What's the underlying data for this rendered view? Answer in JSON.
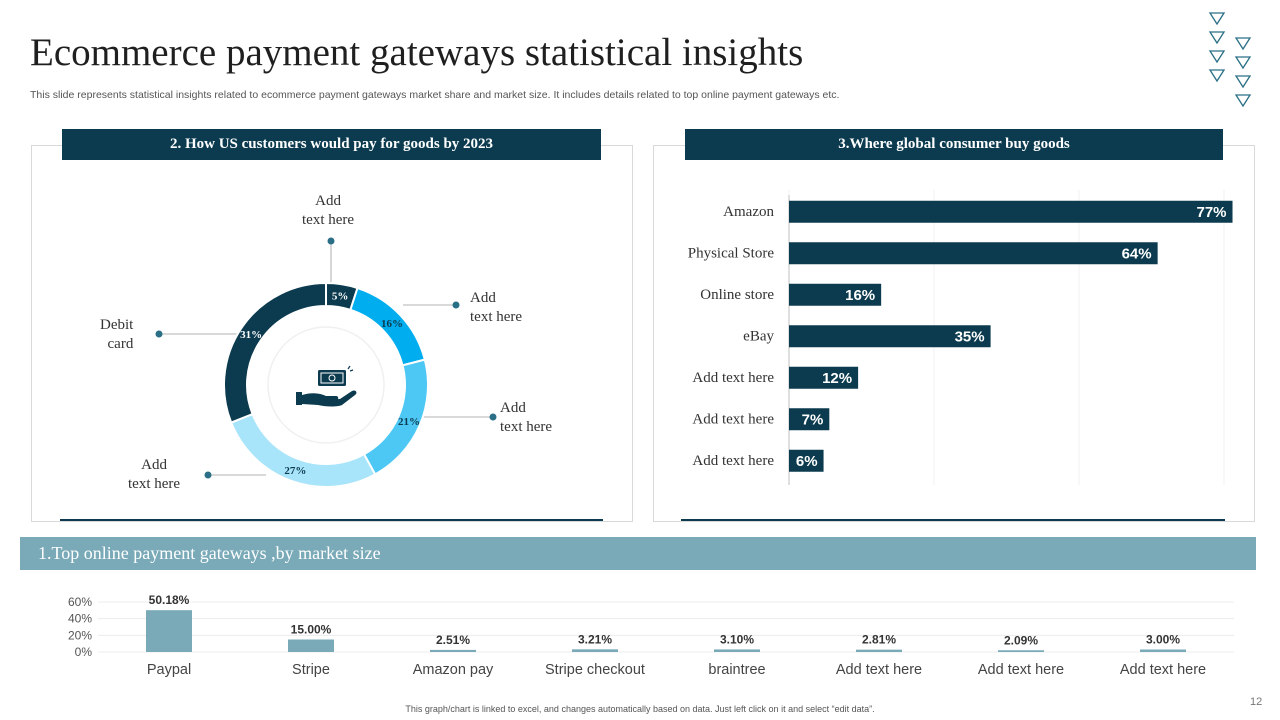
{
  "page": {
    "title": "Ecommerce payment gateways statistical insights",
    "subtitle": "This slide represents statistical insights related to ecommerce payment gateways market share and market size. It includes details related to top online payment gateways etc.",
    "footnote": "This graph/chart is linked to excel, and changes automatically based on data. Just left click on it and select “edit data”.",
    "page_number": "12"
  },
  "colors": {
    "dark_teal": "#0c3b4f",
    "muted_teal": "#7aaab8",
    "donut": [
      "#0c3b4f",
      "#00aeef",
      "#4dc8f5",
      "#a8e4fa",
      "#0c3b4f"
    ]
  },
  "icons": {
    "center": "hand-holding-cash-icon",
    "decoration": "triangle-pattern-icon"
  },
  "donut_panel": {
    "header": "2. How US customers would pay for goods by 2023",
    "callouts": {
      "top": "Add\ntext here",
      "right_upper": "Add\ntext here",
      "right_lower": "Add\ntext here",
      "bottom_left": "Add\ntext here",
      "left": "Debit\ncard"
    }
  },
  "bar_panel": {
    "header": "3.Where global consumer buy goods"
  },
  "bottom_panel": {
    "header": "1.Top online payment gateways ,by market size"
  },
  "chart_data": [
    {
      "type": "pie",
      "subtype": "donut",
      "title": "2. How US customers would pay for goods by 2023",
      "slices": [
        {
          "label": "",
          "value": 5,
          "display": "5%"
        },
        {
          "label": "",
          "value": 16,
          "display": "16%"
        },
        {
          "label": "",
          "value": 21,
          "display": "21%"
        },
        {
          "label": "",
          "value": 27,
          "display": "27%"
        },
        {
          "label": "Debit card",
          "value": 31,
          "display": "31%"
        }
      ]
    },
    {
      "type": "bar",
      "orientation": "horizontal",
      "title": "3.Where global consumer buy goods",
      "categories": [
        "Amazon",
        "Physical Store",
        "Online store",
        "eBay",
        "Add text here",
        "Add text here",
        "Add text here"
      ],
      "values": [
        77,
        64,
        16,
        35,
        12,
        7,
        6
      ],
      "labels": [
        "77%",
        "64%",
        "16%",
        "35%",
        "12%",
        "7%",
        "6%"
      ],
      "xlim": [
        0,
        80
      ]
    },
    {
      "type": "bar",
      "title": "1.Top online payment gateways ,by market size",
      "categories": [
        "Paypal",
        "Stripe",
        "Amazon pay",
        "Stripe checkout",
        "braintree",
        "Add text here",
        "Add text here",
        "Add text here"
      ],
      "values": [
        50.18,
        15.0,
        2.51,
        3.21,
        3.1,
        2.81,
        2.09,
        3.0
      ],
      "labels": [
        "50.18%",
        "15.00%",
        "2.51%",
        "3.21%",
        "3.10%",
        "2.81%",
        "2.09%",
        "3.00%"
      ],
      "yticks": [
        "0%",
        "20%",
        "40%",
        "60%"
      ],
      "ylim": [
        0,
        60
      ],
      "grid": true
    }
  ]
}
